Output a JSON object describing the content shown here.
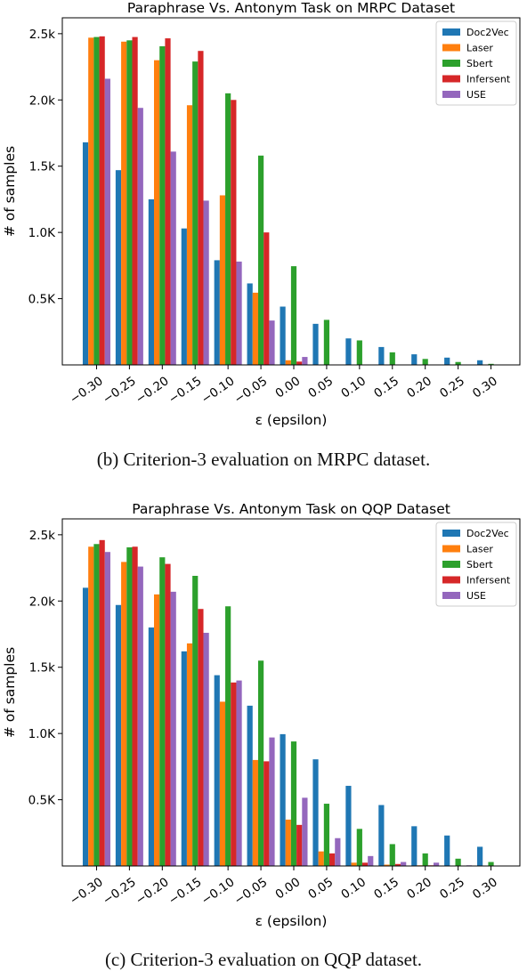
{
  "chart_data": [
    {
      "type": "bar",
      "title": "Paraphrase Vs. Antonym Task on MRPC Dataset",
      "xlabel": "ε (epsilon)",
      "ylabel": "# of samples",
      "categories": [
        "−0.30",
        "−0.25",
        "−0.20",
        "−0.15",
        "−0.10",
        "−0.05",
        "0.00",
        "0.05",
        "0.10",
        "0.15",
        "0.20",
        "0.25",
        "0.30"
      ],
      "ytick_labels": [
        [
          "0.5K",
          500
        ],
        [
          "1.0K",
          1000
        ],
        [
          "1.5k",
          1500
        ],
        [
          "2.0k",
          2000
        ],
        [
          "2.5k",
          2500
        ]
      ],
      "ylim": [
        0,
        2620
      ],
      "legend_position": "top-right",
      "grid": false,
      "series": [
        {
          "name": "Doc2Vec",
          "color": "#1f77b4",
          "values": [
            1680,
            1470,
            1250,
            1030,
            790,
            615,
            440,
            310,
            200,
            135,
            80,
            55,
            35
          ]
        },
        {
          "name": "Laser",
          "color": "#ff7f0e",
          "values": [
            2470,
            2440,
            2300,
            1960,
            1280,
            545,
            35,
            0,
            0,
            0,
            0,
            0,
            0
          ]
        },
        {
          "name": "Sbert",
          "color": "#2ca02c",
          "values": [
            2475,
            2450,
            2405,
            2290,
            2050,
            1580,
            745,
            340,
            185,
            95,
            45,
            22,
            8
          ]
        },
        {
          "name": "Infersent",
          "color": "#d62728",
          "values": [
            2480,
            2475,
            2465,
            2370,
            2000,
            1000,
            25,
            0,
            0,
            0,
            0,
            0,
            0
          ]
        },
        {
          "name": "USE",
          "color": "#9467bd",
          "values": [
            2160,
            1940,
            1610,
            1240,
            780,
            335,
            60,
            0,
            0,
            0,
            0,
            0,
            0
          ]
        }
      ]
    },
    {
      "type": "bar",
      "title": "Paraphrase Vs. Antonym Task on QQP Dataset",
      "xlabel": "ε (epsilon)",
      "ylabel": "# of samples",
      "categories": [
        "−0.30",
        "−0.25",
        "−0.20",
        "−0.15",
        "−0.10",
        "−0.05",
        "0.00",
        "0.05",
        "0.10",
        "0.15",
        "0.20",
        "0.25",
        "0.30"
      ],
      "ytick_labels": [
        [
          "0.5K",
          500
        ],
        [
          "1.0K",
          1000
        ],
        [
          "1.5k",
          1500
        ],
        [
          "2.0k",
          2000
        ],
        [
          "2.5k",
          2500
        ]
      ],
      "ylim": [
        0,
        2620
      ],
      "legend_position": "top-right",
      "grid": false,
      "series": [
        {
          "name": "Doc2Vec",
          "color": "#1f77b4",
          "values": [
            2100,
            1970,
            1800,
            1620,
            1440,
            1210,
            995,
            805,
            605,
            460,
            300,
            230,
            145
          ]
        },
        {
          "name": "Laser",
          "color": "#ff7f0e",
          "values": [
            2410,
            2295,
            2050,
            1680,
            1240,
            800,
            350,
            110,
            25,
            10,
            5,
            0,
            0
          ]
        },
        {
          "name": "Sbert",
          "color": "#2ca02c",
          "values": [
            2430,
            2405,
            2330,
            2190,
            1960,
            1550,
            940,
            470,
            280,
            165,
            95,
            55,
            30
          ]
        },
        {
          "name": "Infersent",
          "color": "#d62728",
          "values": [
            2460,
            2410,
            2280,
            1940,
            1385,
            790,
            310,
            95,
            25,
            15,
            5,
            0,
            0
          ]
        },
        {
          "name": "USE",
          "color": "#9467bd",
          "values": [
            2370,
            2260,
            2070,
            1760,
            1400,
            970,
            515,
            210,
            75,
            30,
            25,
            5,
            0
          ]
        }
      ]
    }
  ],
  "captions": [
    "(b) Criterion-3 evaluation on MRPC dataset.",
    "(c) Criterion-3 evaluation on QQP dataset."
  ]
}
